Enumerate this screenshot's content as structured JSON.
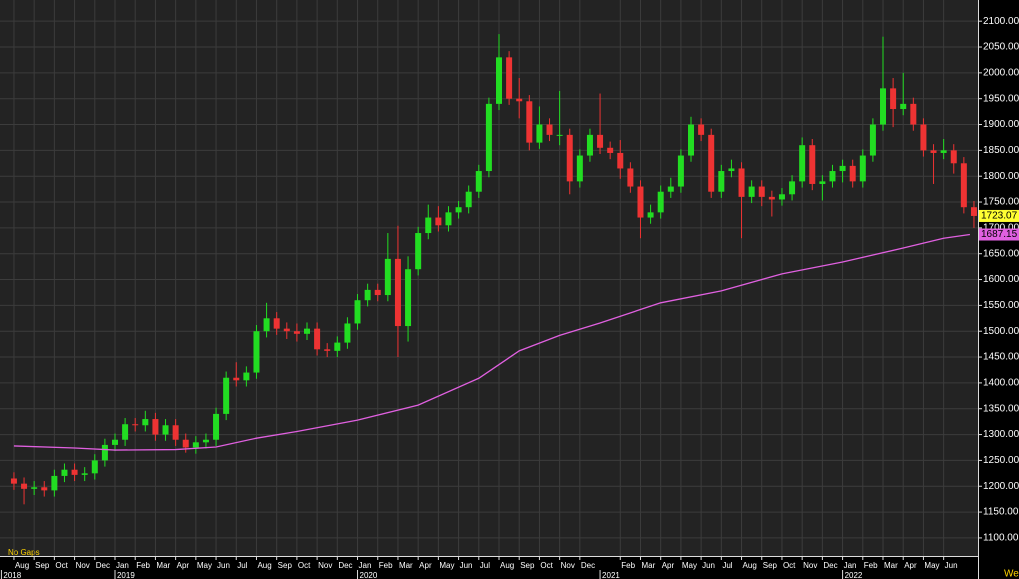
{
  "chart_data": {
    "type": "candlestick",
    "up_color": "#22dd22",
    "down_color": "#ee3333",
    "grid": true,
    "xlim": [
      -0.69,
      47.7
    ],
    "ylim": [
      1065,
      2141
    ],
    "yticks": [
      {
        "value": 1100,
        "label": "1100.00"
      },
      {
        "value": 1150,
        "label": "1150.00"
      },
      {
        "value": 1200,
        "label": "1200.00"
      },
      {
        "value": 1250,
        "label": "1250.00"
      },
      {
        "value": 1300,
        "label": "1300.00"
      },
      {
        "value": 1350,
        "label": "1350.00"
      },
      {
        "value": 1400,
        "label": "1400.00"
      },
      {
        "value": 1450,
        "label": "1450.00"
      },
      {
        "value": 1500,
        "label": "1500.00"
      },
      {
        "value": 1550,
        "label": "1550.00"
      },
      {
        "value": 1600,
        "label": "1600.00"
      },
      {
        "value": 1650,
        "label": "1650.00"
      },
      {
        "value": 1700,
        "label": "1700.00"
      },
      {
        "value": 1750,
        "label": "1750.00"
      },
      {
        "value": 1800,
        "label": "1800.00"
      },
      {
        "value": 1850,
        "label": "1850.00"
      },
      {
        "value": 1900,
        "label": "1900.00"
      },
      {
        "value": 1950,
        "label": "1950.00"
      },
      {
        "value": 2000,
        "label": "2000.00"
      },
      {
        "value": 2050,
        "label": "2050.00"
      },
      {
        "value": 2100,
        "label": "2100.00"
      }
    ],
    "xticks": [
      {
        "value": 0,
        "label": "Aug"
      },
      {
        "value": 1,
        "label": "Sep"
      },
      {
        "value": 2,
        "label": "Oct"
      },
      {
        "value": 3,
        "label": "Nov"
      },
      {
        "value": 4,
        "label": "Dec"
      },
      {
        "value": 5,
        "label": "Jan"
      },
      {
        "value": 6,
        "label": "Feb"
      },
      {
        "value": 7,
        "label": "Mar"
      },
      {
        "value": 8,
        "label": "Apr"
      },
      {
        "value": 9,
        "label": "May"
      },
      {
        "value": 10,
        "label": "Jun"
      },
      {
        "value": 11,
        "label": "Jul"
      },
      {
        "value": 12,
        "label": "Aug"
      },
      {
        "value": 13,
        "label": "Sep"
      },
      {
        "value": 14,
        "label": "Oct"
      },
      {
        "value": 15,
        "label": "Nov"
      },
      {
        "value": 16,
        "label": "Dec"
      },
      {
        "value": 17,
        "label": "Jan"
      },
      {
        "value": 18,
        "label": "Feb"
      },
      {
        "value": 19,
        "label": "Mar"
      },
      {
        "value": 20,
        "label": "Apr"
      },
      {
        "value": 21,
        "label": "May"
      },
      {
        "value": 22,
        "label": "Jun"
      },
      {
        "value": 23,
        "label": "Jul"
      },
      {
        "value": 24,
        "label": "Aug"
      },
      {
        "value": 25,
        "label": "Sep"
      },
      {
        "value": 26,
        "label": "Oct"
      },
      {
        "value": 27,
        "label": "Nov"
      },
      {
        "value": 28,
        "label": "Dec"
      },
      {
        "value": 30,
        "label": "Feb"
      },
      {
        "value": 31,
        "label": "Mar"
      },
      {
        "value": 32,
        "label": "Apr"
      },
      {
        "value": 33,
        "label": "May"
      },
      {
        "value": 34,
        "label": "Jun"
      },
      {
        "value": 35,
        "label": "Jul"
      },
      {
        "value": 36,
        "label": "Aug"
      },
      {
        "value": 37,
        "label": "Sep"
      },
      {
        "value": 38,
        "label": "Oct"
      },
      {
        "value": 39,
        "label": "Nov"
      },
      {
        "value": 40,
        "label": "Dec"
      },
      {
        "value": 41,
        "label": "Jan"
      },
      {
        "value": 42,
        "label": "Feb"
      },
      {
        "value": 43,
        "label": "Mar"
      },
      {
        "value": 44,
        "label": "Apr"
      },
      {
        "value": 45,
        "label": "May"
      },
      {
        "value": 46,
        "label": "Jun"
      }
    ],
    "year_ticks": [
      {
        "value": -0.62,
        "label": "2018"
      },
      {
        "value": 5,
        "label": "2019"
      },
      {
        "value": 17,
        "label": "2020"
      },
      {
        "value": 29,
        "label": "2021"
      },
      {
        "value": 41,
        "label": "2022"
      }
    ],
    "x": [
      0,
      0.5,
      1,
      1.5,
      2,
      2.5,
      3,
      3.5,
      4,
      4.5,
      5,
      5.5,
      6,
      6.5,
      7,
      7.5,
      8,
      8.5,
      9,
      9.5,
      10,
      10.5,
      11,
      11.5,
      12,
      12.5,
      13,
      13.5,
      14,
      14.5,
      15,
      15.5,
      16,
      16.5,
      17,
      17.5,
      18,
      18.5,
      19,
      19.5,
      20,
      20.5,
      21,
      21.5,
      22,
      22.5,
      23,
      23.5,
      24,
      24.5,
      25,
      25.5,
      26,
      26.5,
      27,
      27.5,
      28,
      28.5,
      29,
      29.5,
      30,
      30.5,
      31,
      31.5,
      32,
      32.5,
      33,
      33.5,
      34,
      34.5,
      35,
      35.5,
      36,
      36.5,
      37,
      37.5,
      38,
      38.5,
      39,
      39.5,
      40,
      40.5,
      41,
      41.5,
      42,
      42.5,
      43,
      43.5,
      44,
      44.5,
      45,
      45.5,
      46,
      46.5,
      47,
      47.5
    ],
    "open": [
      1215,
      1205,
      1195,
      1198,
      1192,
      1220,
      1232,
      1222,
      1225,
      1250,
      1280,
      1290,
      1320,
      1318,
      1330,
      1300,
      1318,
      1290,
      1275,
      1285,
      1290,
      1340,
      1410,
      1405,
      1420,
      1500,
      1525,
      1505,
      1500,
      1495,
      1505,
      1465,
      1462,
      1478,
      1515,
      1560,
      1580,
      1570,
      1640,
      1510,
      1620,
      1690,
      1720,
      1705,
      1730,
      1740,
      1770,
      1810,
      1940,
      2030,
      1950,
      1945,
      1865,
      1900,
      1880,
      1880,
      1790,
      1840,
      1880,
      1855,
      1845,
      1815,
      1780,
      1720,
      1730,
      1770,
      1780,
      1840,
      1900,
      1880,
      1770,
      1810,
      1815,
      1760,
      1780,
      1760,
      1755,
      1765,
      1790,
      1860,
      1785,
      1790,
      1810,
      1820,
      1790,
      1840,
      1900,
      1970,
      1930,
      1940,
      1900,
      1850,
      1845,
      1850,
      1825,
      1740
    ],
    "high": [
      1227,
      1217,
      1210,
      1210,
      1232,
      1244,
      1244,
      1237,
      1262,
      1292,
      1302,
      1332,
      1332,
      1346,
      1342,
      1330,
      1330,
      1302,
      1297,
      1302,
      1352,
      1422,
      1440,
      1432,
      1512,
      1555,
      1537,
      1517,
      1515,
      1517,
      1517,
      1477,
      1490,
      1527,
      1572,
      1592,
      1592,
      1690,
      1704,
      1645,
      1702,
      1745,
      1742,
      1742,
      1752,
      1782,
      1822,
      1952,
      2075,
      2042,
      1990,
      1957,
      1935,
      1912,
      1965,
      1892,
      1852,
      1892,
      1960,
      1867,
      1870,
      1827,
      1792,
      1745,
      1782,
      1797,
      1852,
      1915,
      1912,
      1892,
      1822,
      1832,
      1827,
      1792,
      1792,
      1772,
      1777,
      1802,
      1875,
      1872,
      1802,
      1822,
      1832,
      1832,
      1852,
      1912,
      2070,
      1990,
      2000,
      1952,
      1912,
      1862,
      1872,
      1862,
      1837,
      1752
    ],
    "low": [
      1193,
      1165,
      1183,
      1180,
      1180,
      1208,
      1210,
      1210,
      1213,
      1238,
      1268,
      1278,
      1306,
      1306,
      1288,
      1288,
      1278,
      1265,
      1263,
      1273,
      1278,
      1328,
      1393,
      1393,
      1408,
      1488,
      1493,
      1485,
      1480,
      1483,
      1453,
      1450,
      1450,
      1466,
      1503,
      1548,
      1558,
      1558,
      1450,
      1480,
      1608,
      1678,
      1693,
      1693,
      1718,
      1728,
      1758,
      1798,
      1928,
      1938,
      1912,
      1850,
      1853,
      1868,
      1860,
      1765,
      1778,
      1828,
      1843,
      1833,
      1795,
      1768,
      1680,
      1708,
      1718,
      1758,
      1768,
      1828,
      1868,
      1758,
      1758,
      1798,
      1680,
      1748,
      1742,
      1722,
      1743,
      1753,
      1778,
      1773,
      1753,
      1778,
      1788,
      1778,
      1778,
      1828,
      1888,
      1895,
      1918,
      1888,
      1838,
      1785,
      1833,
      1805,
      1728,
      1700
    ],
    "close": [
      1205,
      1195,
      1198,
      1192,
      1220,
      1232,
      1222,
      1225,
      1250,
      1280,
      1290,
      1320,
      1318,
      1330,
      1300,
      1318,
      1290,
      1275,
      1285,
      1290,
      1340,
      1410,
      1405,
      1420,
      1500,
      1525,
      1505,
      1500,
      1495,
      1505,
      1465,
      1462,
      1478,
      1515,
      1560,
      1580,
      1570,
      1640,
      1510,
      1620,
      1690,
      1720,
      1705,
      1730,
      1740,
      1770,
      1810,
      1940,
      2030,
      1950,
      1945,
      1865,
      1900,
      1880,
      1880,
      1790,
      1840,
      1880,
      1855,
      1845,
      1815,
      1780,
      1720,
      1730,
      1770,
      1780,
      1840,
      1900,
      1880,
      1770,
      1810,
      1815,
      1760,
      1780,
      1760,
      1755,
      1765,
      1790,
      1860,
      1785,
      1790,
      1810,
      1820,
      1790,
      1840,
      1900,
      1970,
      1930,
      1940,
      1900,
      1850,
      1845,
      1850,
      1825,
      1740,
      1723.07
    ],
    "ma": {
      "color": "#e060e0",
      "x": [
        0,
        3,
        5,
        8,
        10,
        12,
        14,
        17,
        20,
        23,
        25,
        27,
        29,
        32,
        35,
        38,
        41,
        44,
        46,
        47.3
      ],
      "values": [
        1278,
        1274,
        1270,
        1271,
        1276,
        1293,
        1306,
        1328,
        1357,
        1409,
        1462,
        1492,
        1516,
        1555,
        1578,
        1611,
        1634,
        1661,
        1680,
        1687.15
      ]
    },
    "note": "No Gaps",
    "corner_text": "We"
  }
}
